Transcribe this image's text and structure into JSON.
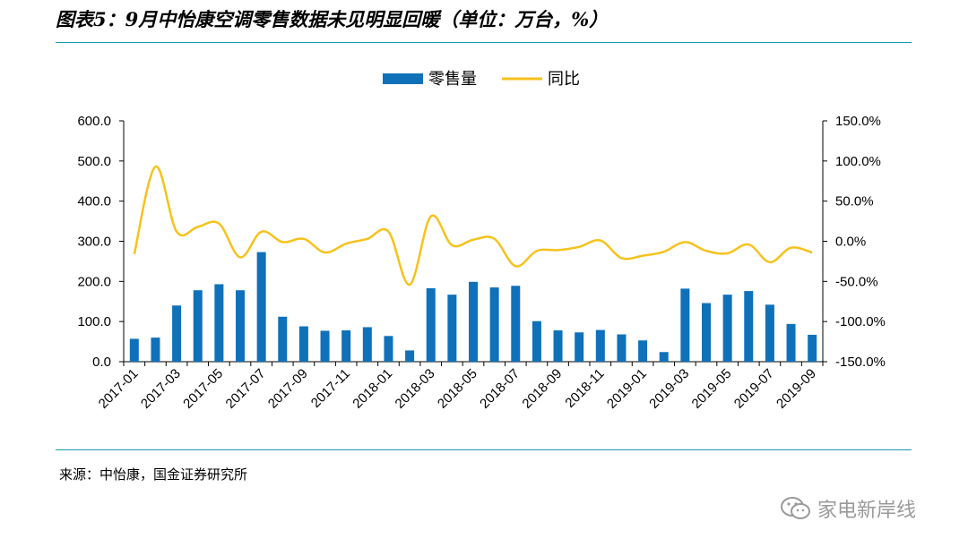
{
  "title": "图表5：9月中怡康空调零售数据未见明显回暖（单位：万台，%）",
  "source": "来源：中怡康，国金证券研究所",
  "watermark": "家电新岸线",
  "colors": {
    "bar": "#0f71ba",
    "line": "#f6c21c",
    "rule": "#1a9bb5"
  },
  "chart_data": {
    "type": "bar",
    "legend": [
      "零售量",
      "同比"
    ],
    "legend_position": "top-center",
    "categories": [
      "2017-01",
      "2017-02",
      "2017-03",
      "2017-04",
      "2017-05",
      "2017-06",
      "2017-07",
      "2017-08",
      "2017-09",
      "2017-10",
      "2017-11",
      "2017-12",
      "2018-01",
      "2018-02",
      "2018-03",
      "2018-04",
      "2018-05",
      "2018-06",
      "2018-07",
      "2018-08",
      "2018-09",
      "2018-10",
      "2018-11",
      "2018-12",
      "2019-01",
      "2019-02",
      "2019-03",
      "2019-04",
      "2019-05",
      "2019-06",
      "2019-07",
      "2019-08",
      "2019-09"
    ],
    "x_tick_labels": [
      "2017-01",
      "2017-03",
      "2017-05",
      "2017-07",
      "2017-09",
      "2017-11",
      "2018-01",
      "2018-03",
      "2018-05",
      "2018-07",
      "2018-09",
      "2018-11",
      "2019-01",
      "2019-03",
      "2019-05",
      "2019-07",
      "2019-09"
    ],
    "series": [
      {
        "name": "零售量",
        "type": "bar",
        "axis": "left",
        "values": [
          57,
          60,
          140,
          178,
          193,
          178,
          273,
          112,
          88,
          77,
          78,
          86,
          64,
          28,
          183,
          167,
          199,
          185,
          189,
          101,
          78,
          73,
          79,
          68,
          53,
          24,
          182,
          146,
          167,
          176,
          142,
          94,
          67
        ]
      },
      {
        "name": "同比",
        "type": "line",
        "axis": "right",
        "values": [
          -16,
          93,
          12,
          18,
          22,
          -20,
          12,
          -1,
          3,
          -14,
          -3,
          3,
          12,
          -54,
          31,
          -5,
          2,
          3,
          -31,
          -12,
          -11,
          -7,
          1,
          -21,
          -18,
          -13,
          -1,
          -12,
          -15,
          -4,
          -26,
          -8,
          -14
        ]
      }
    ],
    "ylim_left": [
      0,
      600
    ],
    "ylim_right": [
      -150,
      150
    ],
    "y_ticks_left": [
      "0.0",
      "100.0",
      "200.0",
      "300.0",
      "400.0",
      "500.0",
      "600.0"
    ],
    "y_ticks_right": [
      "-150.0%",
      "-100.0%",
      "-50.0%",
      "0.0%",
      "50.0%",
      "100.0%",
      "150.0%"
    ],
    "grid": false
  }
}
